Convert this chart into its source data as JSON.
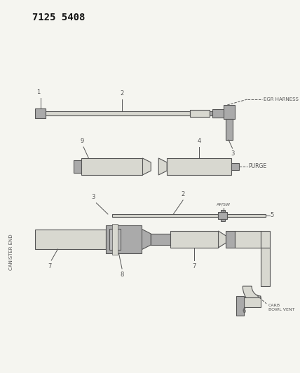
{
  "title": "7125 5408",
  "bg_color": "#f5f5f0",
  "line_color": "#555555",
  "fill_light": "#d8d8d0",
  "fill_dark": "#aaaaaa",
  "title_fontsize": 10,
  "egr_label": "EGR HARNESS",
  "purge_label": "PURGE",
  "ap_sw_label": "AP/SW",
  "carb_bowl_vent_label": "CARB\nBOWL VENT",
  "canister_end_label": "CANISTER END"
}
